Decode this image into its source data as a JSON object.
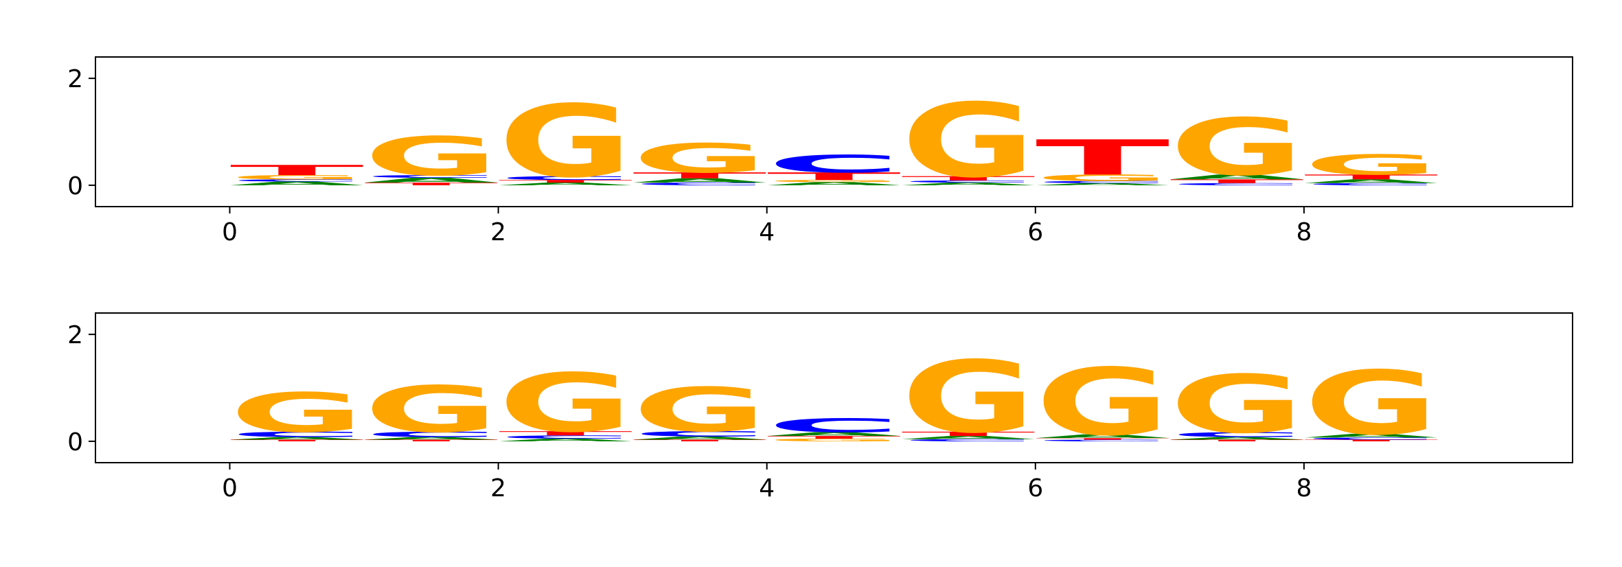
{
  "chart_data": [
    {
      "type": "sequence-logo",
      "title": "",
      "xlabel": "",
      "ylabel": "",
      "xlim": [
        -1,
        10
      ],
      "ylim": [
        -0.4,
        2.4
      ],
      "xticks": [
        0,
        2,
        4,
        6,
        8
      ],
      "xtick_labels": [
        "0",
        "2",
        "4",
        "6",
        "8"
      ],
      "yticks": [
        0,
        2
      ],
      "ytick_labels": [
        "0",
        "2"
      ],
      "colors": {
        "A": "#008000",
        "C": "#0000ff",
        "G": "#ffa500",
        "T": "#ff0000"
      },
      "positions": [
        {
          "x": 0,
          "letters": [
            {
              "base": "A",
              "height": 0.07
            },
            {
              "base": "C",
              "height": 0.04
            },
            {
              "base": "G",
              "height": 0.08
            },
            {
              "base": "T",
              "height": 0.19
            }
          ]
        },
        {
          "x": 1,
          "letters": [
            {
              "base": "T",
              "height": 0.05
            },
            {
              "base": "A",
              "height": 0.09
            },
            {
              "base": "C",
              "height": 0.05
            },
            {
              "base": "G",
              "height": 0.73
            }
          ]
        },
        {
          "x": 2,
          "letters": [
            {
              "base": "A",
              "height": 0.05
            },
            {
              "base": "T",
              "height": 0.05
            },
            {
              "base": "C",
              "height": 0.07
            },
            {
              "base": "G",
              "height": 1.36
            }
          ]
        },
        {
          "x": 3,
          "letters": [
            {
              "base": "C",
              "height": 0.05
            },
            {
              "base": "A",
              "height": 0.08
            },
            {
              "base": "T",
              "height": 0.11
            },
            {
              "base": "G",
              "height": 0.55
            }
          ]
        },
        {
          "x": 4,
          "letters": [
            {
              "base": "A",
              "height": 0.06
            },
            {
              "base": "G",
              "height": 0.04
            },
            {
              "base": "T",
              "height": 0.14
            },
            {
              "base": "C",
              "height": 0.33
            }
          ]
        },
        {
          "x": 5,
          "letters": [
            {
              "base": "A",
              "height": 0.05
            },
            {
              "base": "C",
              "height": 0.04
            },
            {
              "base": "T",
              "height": 0.08
            },
            {
              "base": "G",
              "height": 1.39
            }
          ]
        },
        {
          "x": 6,
          "letters": [
            {
              "base": "A",
              "height": 0.04
            },
            {
              "base": "C",
              "height": 0.04
            },
            {
              "base": "G",
              "height": 0.12
            },
            {
              "base": "T",
              "height": 0.66
            }
          ]
        },
        {
          "x": 7,
          "letters": [
            {
              "base": "C",
              "height": 0.04
            },
            {
              "base": "T",
              "height": 0.07
            },
            {
              "base": "A",
              "height": 0.09
            },
            {
              "base": "G",
              "height": 1.07
            }
          ]
        },
        {
          "x": 8,
          "letters": [
            {
              "base": "C",
              "height": 0.04
            },
            {
              "base": "A",
              "height": 0.07
            },
            {
              "base": "T",
              "height": 0.09
            },
            {
              "base": "G",
              "height": 0.38
            }
          ]
        }
      ]
    },
    {
      "type": "sequence-logo",
      "title": "",
      "xlabel": "",
      "ylabel": "",
      "xlim": [
        -1,
        10
      ],
      "ylim": [
        -0.4,
        2.4
      ],
      "xticks": [
        0,
        2,
        4,
        6,
        8
      ],
      "xtick_labels": [
        "0",
        "2",
        "4",
        "6",
        "8"
      ],
      "yticks": [
        0,
        2
      ],
      "ytick_labels": [
        "0",
        "2"
      ],
      "colors": {
        "A": "#008000",
        "C": "#0000ff",
        "G": "#ffa500",
        "T": "#ff0000"
      },
      "positions": [
        {
          "x": 0,
          "letters": [
            {
              "base": "T",
              "height": 0.03
            },
            {
              "base": "A",
              "height": 0.05
            },
            {
              "base": "C",
              "height": 0.1
            },
            {
              "base": "G",
              "height": 0.74
            }
          ]
        },
        {
          "x": 1,
          "letters": [
            {
              "base": "T",
              "height": 0.03
            },
            {
              "base": "A",
              "height": 0.05
            },
            {
              "base": "C",
              "height": 0.1
            },
            {
              "base": "G",
              "height": 0.87
            }
          ]
        },
        {
          "x": 2,
          "letters": [
            {
              "base": "A",
              "height": 0.05
            },
            {
              "base": "C",
              "height": 0.06
            },
            {
              "base": "T",
              "height": 0.08
            },
            {
              "base": "G",
              "height": 1.1
            }
          ]
        },
        {
          "x": 3,
          "letters": [
            {
              "base": "T",
              "height": 0.03
            },
            {
              "base": "A",
              "height": 0.06
            },
            {
              "base": "C",
              "height": 0.1
            },
            {
              "base": "G",
              "height": 0.83
            }
          ]
        },
        {
          "x": 4,
          "letters": [
            {
              "base": "G",
              "height": 0.05
            },
            {
              "base": "T",
              "height": 0.05
            },
            {
              "base": "A",
              "height": 0.07
            },
            {
              "base": "C",
              "height": 0.26
            }
          ]
        },
        {
          "x": 5,
          "letters": [
            {
              "base": "C",
              "height": 0.04
            },
            {
              "base": "A",
              "height": 0.06
            },
            {
              "base": "T",
              "height": 0.08
            },
            {
              "base": "G",
              "height": 1.35
            }
          ]
        },
        {
          "x": 6,
          "letters": [
            {
              "base": "C",
              "height": 0.03
            },
            {
              "base": "T",
              "height": 0.03
            },
            {
              "base": "A",
              "height": 0.07
            },
            {
              "base": "G",
              "height": 1.26
            }
          ]
        },
        {
          "x": 7,
          "letters": [
            {
              "base": "T",
              "height": 0.03
            },
            {
              "base": "A",
              "height": 0.05
            },
            {
              "base": "C",
              "height": 0.09
            },
            {
              "base": "G",
              "height": 1.09
            }
          ]
        },
        {
          "x": 8,
          "letters": [
            {
              "base": "T",
              "height": 0.03
            },
            {
              "base": "C",
              "height": 0.04
            },
            {
              "base": "A",
              "height": 0.07
            },
            {
              "base": "G",
              "height": 1.2
            }
          ]
        }
      ]
    }
  ]
}
